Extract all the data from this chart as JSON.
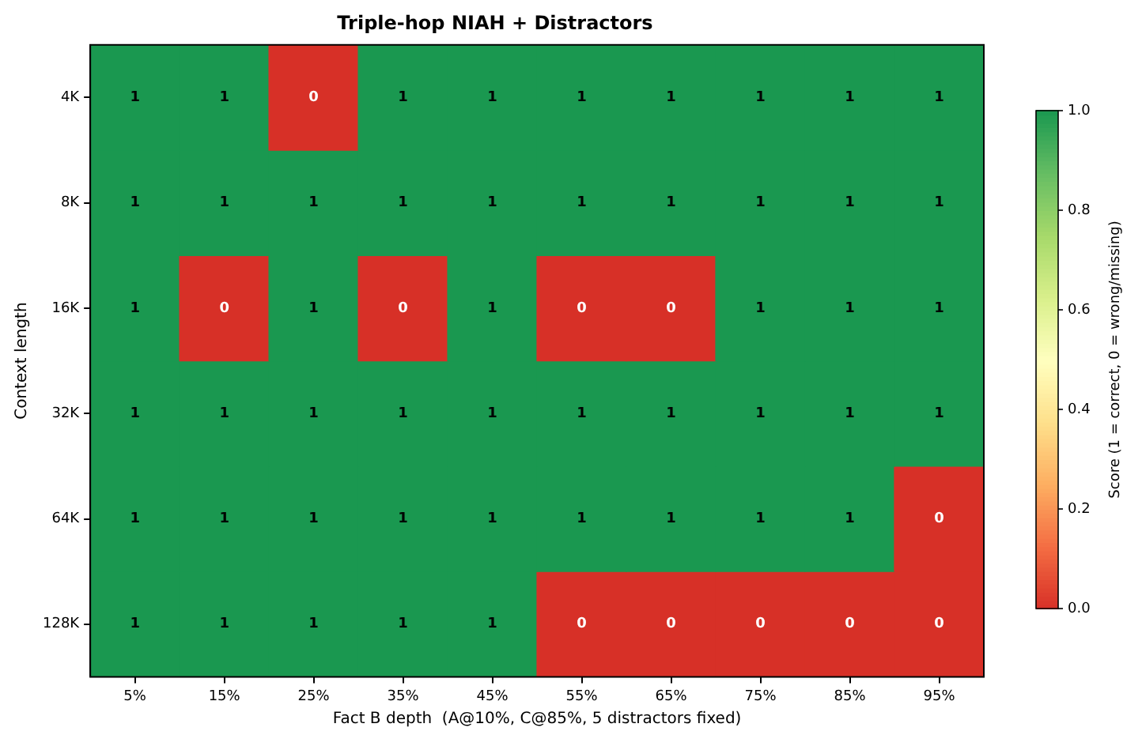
{
  "chart_data": {
    "type": "heatmap",
    "title": "Triple-hop NIAH + Distractors",
    "xlabel": "Fact B depth  (A@10%, C@85%, 5 distractors fixed)",
    "ylabel": "Context length",
    "clabel": "Score (1 = correct, 0 = wrong/missing)",
    "categories": [
      "5%",
      "15%",
      "25%",
      "35%",
      "45%",
      "55%",
      "65%",
      "75%",
      "85%",
      "95%"
    ],
    "y_categories": [
      "4K",
      "8K",
      "16K",
      "32K",
      "64K",
      "128K"
    ],
    "cells": [
      [
        1,
        1,
        0,
        1,
        1,
        1,
        1,
        1,
        1,
        1
      ],
      [
        1,
        1,
        1,
        1,
        1,
        1,
        1,
        1,
        1,
        1
      ],
      [
        1,
        0,
        1,
        0,
        1,
        0,
        0,
        1,
        1,
        1
      ],
      [
        1,
        1,
        1,
        1,
        1,
        1,
        1,
        1,
        1,
        1
      ],
      [
        1,
        1,
        1,
        1,
        1,
        1,
        1,
        1,
        1,
        0
      ],
      [
        1,
        1,
        1,
        1,
        1,
        0,
        0,
        0,
        0,
        0
      ]
    ],
    "data_labels": true,
    "clim": [
      0,
      1
    ],
    "cticks": [
      {
        "value": 0,
        "label": "0.0"
      },
      {
        "value": 0.2,
        "label": "0.2"
      },
      {
        "value": 0.4,
        "label": "0.4"
      },
      {
        "value": 0.6,
        "label": "0.6"
      },
      {
        "value": 0.8,
        "label": "0.8"
      },
      {
        "value": 1,
        "label": "1.0"
      }
    ]
  }
}
